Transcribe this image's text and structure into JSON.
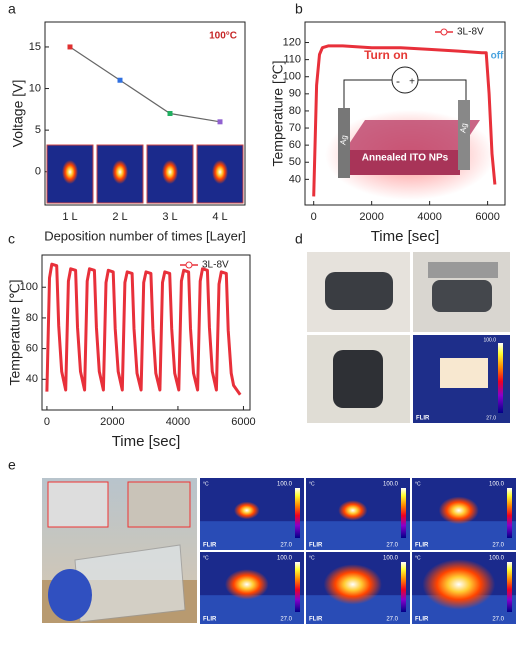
{
  "panel_labels": [
    "a",
    "b",
    "c",
    "d",
    "e"
  ],
  "thermal_labels": {
    "unit": "°C",
    "max": "100.0",
    "min": "27.0",
    "brand": "FLIR"
  },
  "chart_data": [
    {
      "type": "line",
      "categories": [
        "1 L",
        "2 L",
        "3 L",
        "4 L"
      ],
      "values": [
        15,
        11,
        7,
        6
      ],
      "point_colors": [
        "#e03030",
        "#3070e0",
        "#20b060",
        "#9060d0"
      ],
      "color": "#666666",
      "ylim": [
        -4,
        18
      ],
      "yticks": [
        0,
        5,
        10,
        15
      ],
      "x_label": "Deposition number of times [Layer]",
      "y_label": "Voltage [V]",
      "annotations": [
        "100°C"
      ]
    },
    {
      "type": "line",
      "x": [
        0,
        100,
        200,
        300,
        500,
        1000,
        2000,
        3000,
        4000,
        5000,
        5800,
        5950,
        6050,
        6150,
        6250
      ],
      "series": [
        {
          "name": "3L-8V",
          "color": "#e8303a",
          "values": [
            30,
            95,
            113,
            117,
            118,
            118,
            117,
            117,
            116,
            115,
            114,
            114,
            90,
            55,
            37
          ]
        }
      ],
      "xlim": [
        -300,
        6600
      ],
      "ylim": [
        25,
        132
      ],
      "xticks": [
        0,
        2000,
        4000,
        6000
      ],
      "yticks": [
        40,
        50,
        60,
        70,
        80,
        90,
        100,
        110,
        120
      ],
      "x_label": "Time [sec]",
      "y_label": "Temperature [℃]",
      "annotations": [
        "Turn on",
        "off",
        "-",
        "+",
        "Ag",
        "Ag",
        "Annealed ITO NPs"
      ]
    },
    {
      "type": "line",
      "x": [
        0,
        80,
        150,
        300,
        360,
        450,
        575,
        655,
        725,
        875,
        935,
        1025,
        1150,
        1230,
        1300,
        1450,
        1510,
        1600,
        1725,
        1805,
        1875,
        2025,
        2085,
        2175,
        2300,
        2380,
        2450,
        2600,
        2660,
        2750,
        2875,
        2955,
        3025,
        3175,
        3235,
        3325,
        3450,
        3530,
        3600,
        3750,
        3810,
        3900,
        4025,
        4105,
        4175,
        4325,
        4385,
        4475,
        4600,
        4680,
        4750,
        4900,
        4960,
        5050,
        5175,
        5255,
        5325,
        5475,
        5535,
        5625,
        5700,
        5900
      ],
      "series": [
        {
          "name": "3L-8V",
          "color": "#e8303a",
          "values": [
            32,
            106,
            115,
            114,
            75,
            45,
            33,
            104,
            112,
            111,
            74,
            45,
            33,
            104,
            112,
            111,
            74,
            45,
            33,
            103,
            111,
            110,
            73,
            45,
            33,
            103,
            110,
            109,
            73,
            44,
            33,
            103,
            110,
            109,
            73,
            44,
            33,
            103,
            110,
            109,
            73,
            44,
            33,
            104,
            111,
            110,
            73,
            44,
            33,
            104,
            112,
            111,
            74,
            45,
            33,
            102,
            110,
            109,
            72,
            44,
            36,
            30
          ]
        }
      ],
      "xlim": [
        -150,
        6200
      ],
      "ylim": [
        20,
        121
      ],
      "xticks": [
        0,
        2000,
        4000,
        6000
      ],
      "yticks": [
        40,
        60,
        80,
        100
      ],
      "x_label": "Time [sec]",
      "y_label": "Temperature [℃]"
    }
  ]
}
